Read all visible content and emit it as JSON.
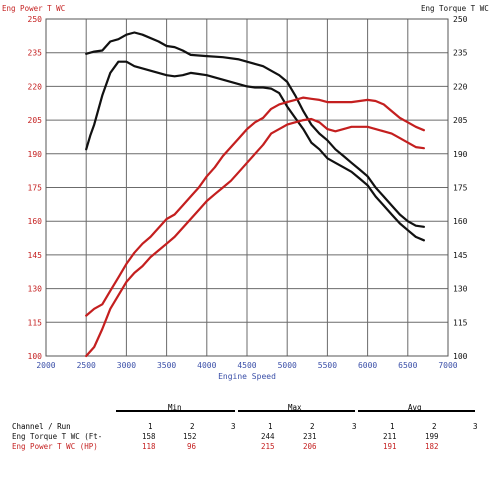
{
  "chart_data": {
    "type": "line",
    "left_axis_title": "Eng Power T WC",
    "right_axis_title": "Eng Torque T WC",
    "xlabel": "Engine Speed",
    "xlim": [
      2000,
      7000
    ],
    "ylim": [
      100,
      250
    ],
    "x_ticks": [
      "2000",
      "2500",
      "3000",
      "3500",
      "4000",
      "4500",
      "5000",
      "5500",
      "6000",
      "6500",
      "7000"
    ],
    "y_ticks_left": [
      "100",
      "115",
      "130",
      "145",
      "160",
      "175",
      "190",
      "205",
      "220",
      "235",
      "250"
    ],
    "y_ticks_right": [
      "100",
      "115",
      "130",
      "145",
      "160",
      "175",
      "190",
      "205",
      "220",
      "235",
      "250"
    ],
    "grid": true,
    "colors": {
      "torque": "#111111",
      "power": "#c41f1f",
      "x_tick": "#3a4fa8",
      "left_tick": "#c41f1f",
      "right_tick": "#111111"
    },
    "series": [
      {
        "name": "Eng Torque T WC",
        "run": "1",
        "color": "#111111",
        "x": [
          2500,
          2600,
          2700,
          2800,
          2900,
          3000,
          3100,
          3200,
          3400,
          3500,
          3600,
          3700,
          3800,
          4000,
          4200,
          4400,
          4500,
          4600,
          4700,
          4800,
          4900,
          5000,
          5100,
          5200,
          5300,
          5400,
          5500,
          5600,
          5700,
          5800,
          5900,
          6000,
          6100,
          6200,
          6300,
          6400,
          6500,
          6600,
          6700
        ],
        "y": [
          234.5,
          235.5,
          236,
          240,
          241,
          243,
          244,
          243,
          240,
          238,
          237.5,
          236,
          234,
          233.5,
          233,
          232,
          231,
          230,
          229,
          227,
          225,
          222,
          216,
          209,
          203,
          199,
          196,
          192,
          189,
          186,
          183,
          180,
          175,
          171,
          167,
          163,
          160,
          158,
          157.5
        ]
      },
      {
        "name": "Eng Torque T WC",
        "run": "2",
        "color": "#111111",
        "x": [
          2500,
          2550,
          2600,
          2700,
          2800,
          2900,
          3000,
          3100,
          3200,
          3300,
          3400,
          3500,
          3600,
          3700,
          3800,
          3900,
          4000,
          4200,
          4400,
          4500,
          4600,
          4700,
          4800,
          4900,
          5000,
          5100,
          5200,
          5300,
          5400,
          5500,
          5600,
          5700,
          5800,
          5900,
          6000,
          6100,
          6200,
          6300,
          6400,
          6500,
          6600,
          6700
        ],
        "y": [
          192,
          198,
          203,
          216,
          226,
          231,
          231,
          229,
          228,
          227,
          226,
          225,
          224.5,
          225,
          226,
          225.5,
          225,
          223,
          221,
          220,
          219.5,
          219.5,
          219,
          217,
          211,
          206,
          201,
          195,
          192,
          188,
          186,
          184,
          182,
          179,
          176,
          171,
          167,
          163,
          159,
          156,
          153,
          151.5
        ]
      },
      {
        "name": "Eng Power T WC",
        "run": "1",
        "color": "#c41f1f",
        "x": [
          2500,
          2600,
          2700,
          2800,
          2900,
          3000,
          3100,
          3200,
          3300,
          3400,
          3500,
          3600,
          3700,
          3800,
          3900,
          4000,
          4100,
          4200,
          4300,
          4400,
          4500,
          4600,
          4700,
          4800,
          4900,
          5000,
          5100,
          5200,
          5300,
          5400,
          5500,
          5600,
          5700,
          5800,
          5900,
          6000,
          6100,
          6200,
          6300,
          6400,
          6500,
          6600,
          6700
        ],
        "y": [
          118,
          121,
          123,
          129,
          135,
          141,
          146,
          150,
          153,
          157,
          161,
          163,
          167,
          171,
          175,
          180,
          184,
          189,
          193,
          197,
          201,
          204,
          206,
          210,
          212,
          213,
          214,
          215,
          214.5,
          214,
          213,
          213,
          213,
          213,
          213.5,
          214,
          213.5,
          212,
          209,
          206,
          204,
          202,
          200.5
        ]
      },
      {
        "name": "Eng Power T WC",
        "run": "2",
        "color": "#c41f1f",
        "x": [
          2500,
          2600,
          2700,
          2800,
          2900,
          3000,
          3100,
          3200,
          3300,
          3400,
          3500,
          3600,
          3700,
          3800,
          3900,
          4000,
          4100,
          4200,
          4300,
          4400,
          4500,
          4600,
          4700,
          4800,
          4900,
          5000,
          5100,
          5200,
          5300,
          5400,
          5500,
          5600,
          5700,
          5800,
          5900,
          6000,
          6100,
          6200,
          6300,
          6400,
          6500,
          6600,
          6700
        ],
        "y": [
          100,
          104,
          112,
          121,
          127,
          133,
          137,
          140,
          144,
          147,
          150,
          153,
          157,
          161,
          165,
          169,
          172,
          175,
          178,
          182,
          186,
          190,
          194,
          199,
          201,
          203,
          204,
          205,
          205.5,
          204,
          201,
          200,
          201,
          202,
          202,
          202,
          201,
          200,
          199,
          197,
          195,
          193,
          192.5
        ]
      }
    ]
  },
  "stats_table": {
    "groups": [
      "Min",
      "Max",
      "Avg"
    ],
    "header": {
      "label": "Channel / Run",
      "runs": [
        "1",
        "2",
        "3",
        "1",
        "2",
        "3",
        "1",
        "2",
        "3"
      ]
    },
    "rows": [
      {
        "label": "Eng Torque T WC (Ft-",
        "values": [
          "158",
          "152",
          "",
          "244",
          "231",
          "",
          "211",
          "199",
          ""
        ],
        "color": "#111111"
      },
      {
        "label": "Eng Power T WC (HP)",
        "values": [
          "118",
          "96",
          "",
          "215",
          "206",
          "",
          "191",
          "182",
          ""
        ],
        "color": "#c41f1f"
      }
    ]
  }
}
